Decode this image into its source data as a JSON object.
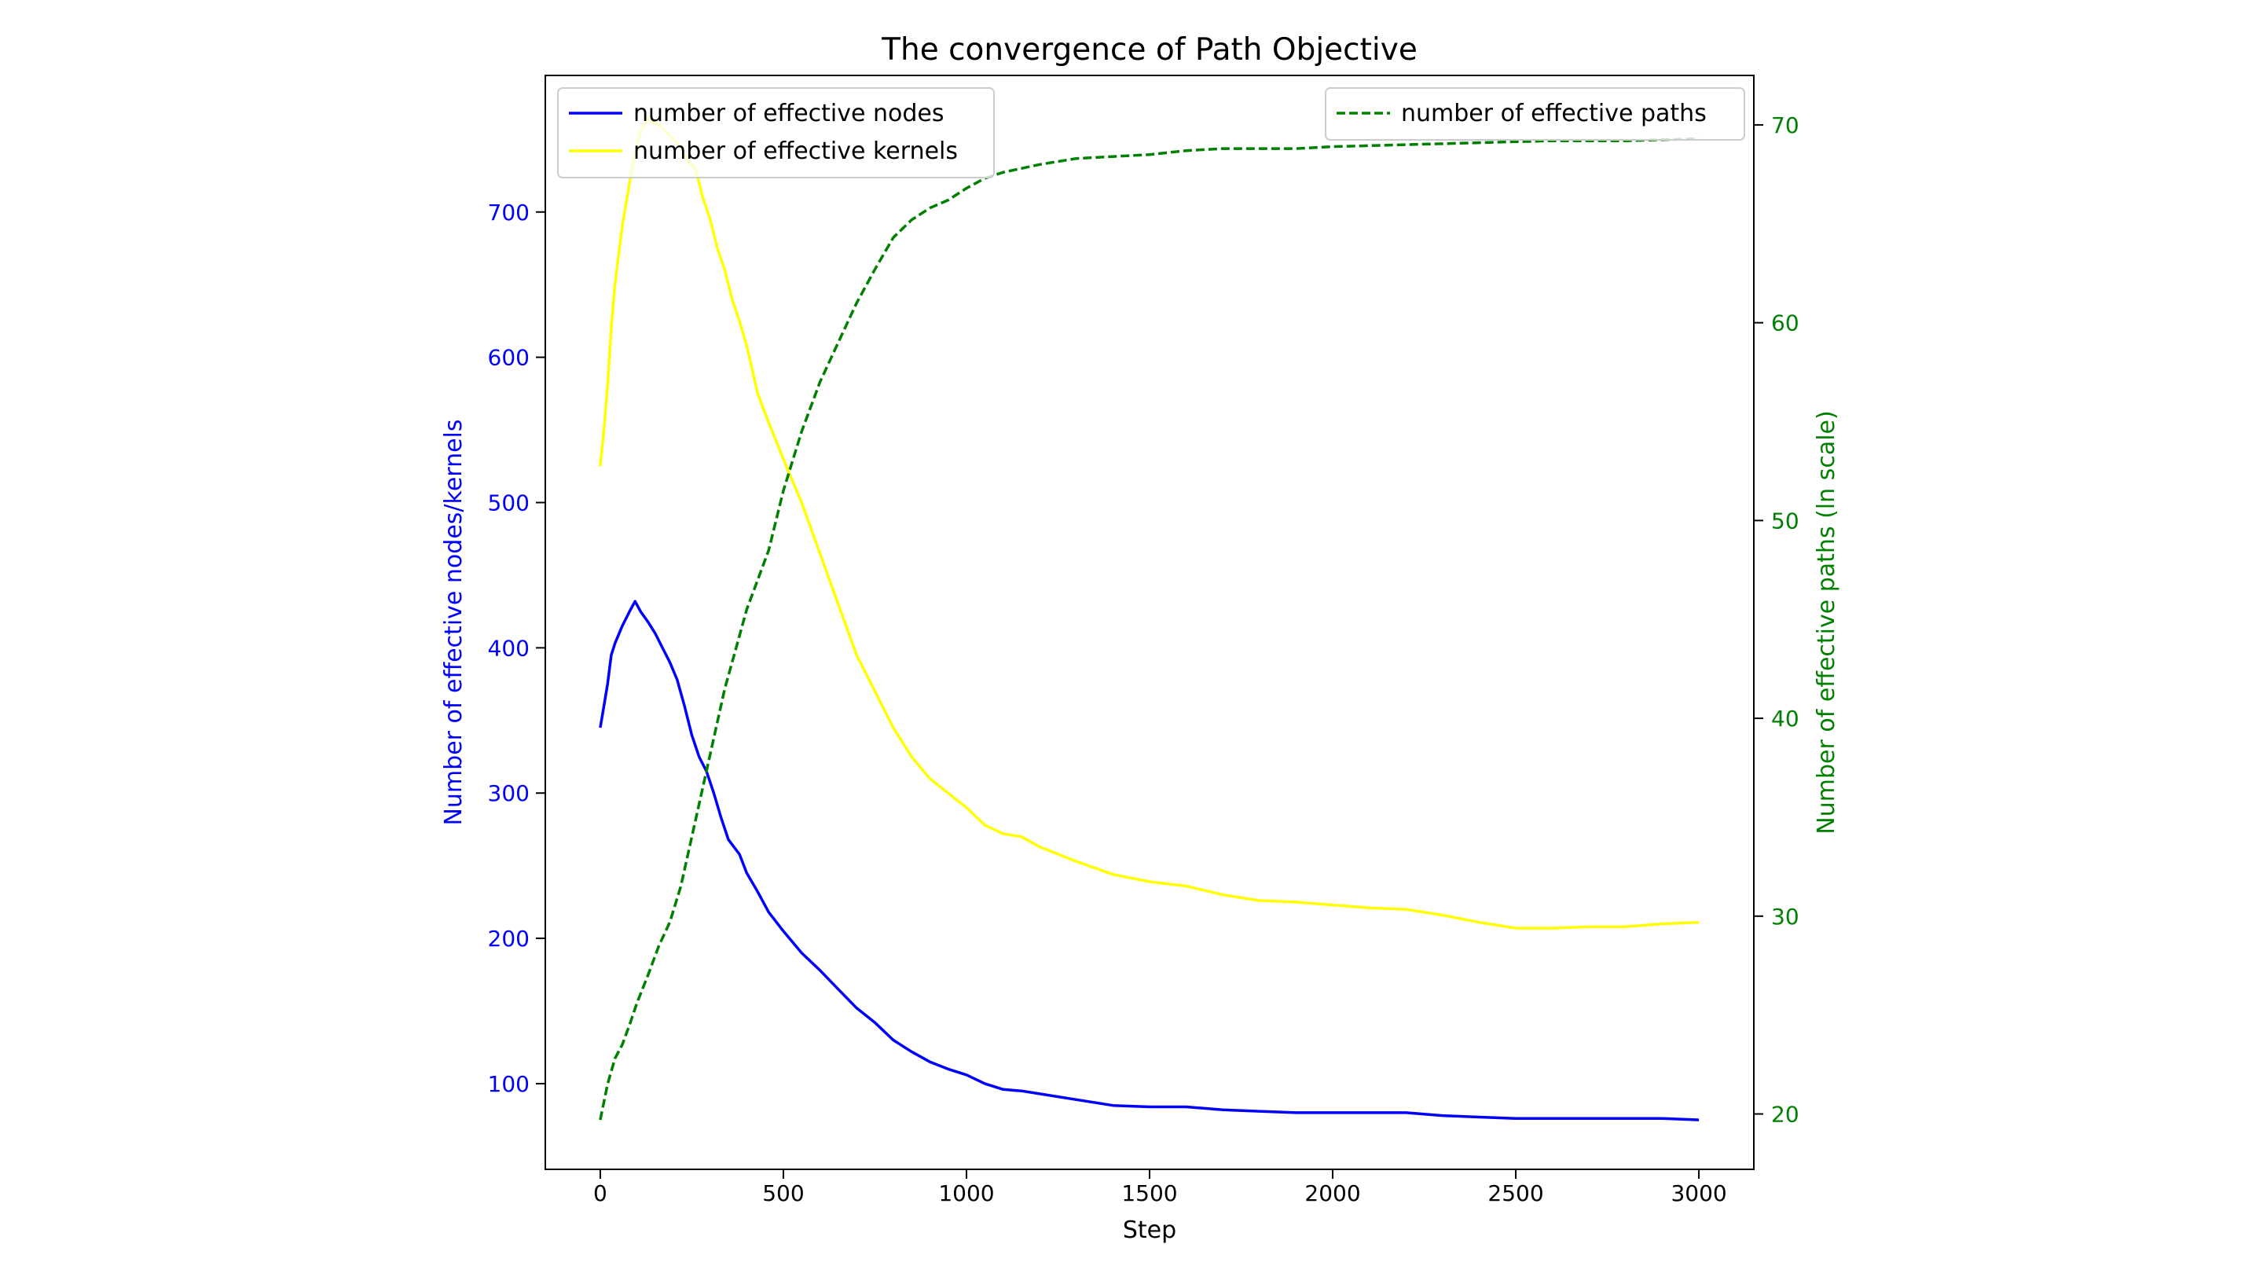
{
  "colors": {
    "nodes": "#0000ff",
    "kernels": "#ffff00",
    "paths": "#008000",
    "axis": "#000000",
    "legend_border": "#cccccc"
  },
  "chart_data": {
    "type": "line",
    "title": "The convergence of Path Objective",
    "xlabel": "Step",
    "ylabel_left": "Number of effective nodes/kernels",
    "ylabel_right": "Number of effective paths (ln scale)",
    "xlim": [
      -150,
      3150
    ],
    "ylim_left": [
      41,
      794
    ],
    "ylim_right": [
      17.2,
      72.5
    ],
    "xticks": [
      0,
      500,
      1000,
      1500,
      2000,
      2500,
      3000
    ],
    "yticks_left": [
      100,
      200,
      300,
      400,
      500,
      600,
      700
    ],
    "yticks_right": [
      20,
      30,
      40,
      50,
      60,
      70
    ],
    "grid": false,
    "legend_left_placement": "upper-left",
    "legend_right_placement": "upper-right",
    "series": [
      {
        "name": "number of effective nodes",
        "axis": "left",
        "style": "solid",
        "x": [
          0,
          10,
          20,
          30,
          40,
          60,
          80,
          95,
          110,
          130,
          150,
          170,
          190,
          210,
          230,
          250,
          270,
          290,
          310,
          330,
          350,
          380,
          400,
          430,
          460,
          500,
          550,
          600,
          650,
          700,
          750,
          800,
          850,
          900,
          950,
          1000,
          1050,
          1100,
          1150,
          1200,
          1300,
          1400,
          1500,
          1600,
          1700,
          1800,
          1900,
          2000,
          2100,
          2200,
          2300,
          2400,
          2500,
          2600,
          2700,
          2800,
          2900,
          3000
        ],
        "values": [
          345,
          360,
          375,
          395,
          403,
          415,
          425,
          432,
          425,
          418,
          410,
          400,
          390,
          378,
          360,
          340,
          325,
          315,
          300,
          283,
          268,
          258,
          245,
          232,
          218,
          205,
          190,
          178,
          165,
          152,
          142,
          130,
          122,
          115,
          110,
          106,
          100,
          96,
          95,
          93,
          89,
          85,
          84,
          84,
          82,
          81,
          80,
          80,
          80,
          80,
          78,
          77,
          76,
          76,
          76,
          76,
          76,
          75
        ]
      },
      {
        "name": "number of effective kernels",
        "axis": "left",
        "style": "solid",
        "x": [
          0,
          10,
          20,
          30,
          40,
          50,
          60,
          70,
          80,
          90,
          100,
          110,
          120,
          130,
          140,
          160,
          180,
          200,
          220,
          240,
          260,
          280,
          300,
          320,
          340,
          360,
          380,
          400,
          430,
          460,
          500,
          550,
          600,
          650,
          700,
          750,
          800,
          850,
          900,
          950,
          1000,
          1050,
          1100,
          1150,
          1200,
          1300,
          1400,
          1500,
          1600,
          1700,
          1800,
          1900,
          2000,
          2100,
          2200,
          2300,
          2400,
          2500,
          2600,
          2700,
          2800,
          2900,
          3000
        ],
        "values": [
          525,
          550,
          580,
          620,
          650,
          670,
          690,
          705,
          720,
          735,
          745,
          755,
          760,
          765,
          762,
          760,
          755,
          750,
          745,
          735,
          730,
          710,
          695,
          675,
          660,
          640,
          625,
          608,
          575,
          555,
          530,
          500,
          465,
          430,
          395,
          370,
          345,
          325,
          310,
          300,
          290,
          278,
          272,
          270,
          263,
          253,
          244,
          239,
          236,
          230,
          226,
          225,
          223,
          221,
          220,
          216,
          211,
          207,
          207,
          208,
          208,
          210,
          211
        ]
      },
      {
        "name": "number of effective paths",
        "axis": "right",
        "style": "dashed",
        "x": [
          0,
          20,
          40,
          60,
          80,
          100,
          130,
          160,
          190,
          220,
          250,
          280,
          310,
          340,
          370,
          400,
          430,
          460,
          500,
          550,
          600,
          650,
          700,
          750,
          800,
          850,
          900,
          950,
          1000,
          1050,
          1100,
          1150,
          1200,
          1300,
          1400,
          1500,
          1600,
          1700,
          1800,
          1900,
          2000,
          2200,
          2400,
          2600,
          2800,
          3000
        ],
        "values": [
          19.7,
          21.5,
          22.8,
          23.5,
          24.5,
          25.6,
          27.0,
          28.5,
          29.7,
          31.5,
          34.0,
          36.5,
          39.0,
          41.5,
          43.5,
          45.5,
          47.0,
          48.5,
          51.5,
          54.5,
          57.0,
          59.0,
          61.0,
          62.7,
          64.3,
          65.2,
          65.8,
          66.2,
          66.8,
          67.3,
          67.6,
          67.8,
          68.0,
          68.3,
          68.4,
          68.5,
          68.7,
          68.8,
          68.8,
          68.8,
          68.9,
          69.0,
          69.1,
          69.2,
          69.2,
          69.3
        ]
      }
    ]
  }
}
